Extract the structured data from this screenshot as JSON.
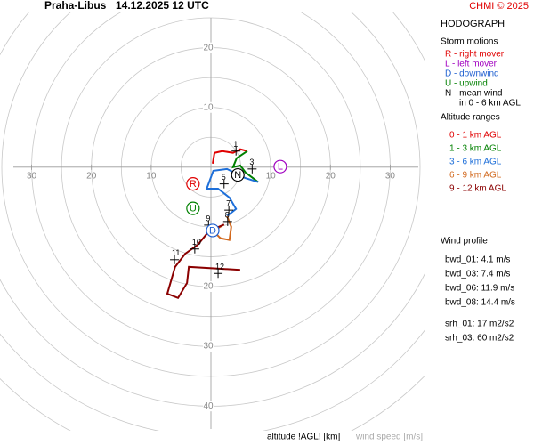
{
  "chart_data": {
    "type": "hodograph",
    "title": "Praha-Libus",
    "subtitle": "14.12.2025 12 UTC",
    "credit": "CHMI © 2025",
    "panel_title": "HODOGRAPH",
    "storm_motions_title": "Storm motions",
    "storm_motions_legend": [
      {
        "text": "R - right mover",
        "color": "#e00000"
      },
      {
        "text": "L - left mover",
        "color": "#a000c0"
      },
      {
        "text": "D - downwind",
        "color": "#1e5fd0"
      },
      {
        "text": "U - upwind",
        "color": "#008000"
      },
      {
        "text": "N - mean wind",
        "color": "#000000"
      },
      {
        "text": "in 0 - 6 km AGL",
        "color": "#000000"
      }
    ],
    "altitude_ranges_title": "Altitude ranges",
    "wind_profile_title": "Wind profile",
    "wind_profile": [
      "bwd_01: 4.1 m/s",
      "bwd_03: 7.4 m/s",
      "bwd_06: 11.9 m/s",
      "bwd_08: 14.4 m/s",
      "srh_01: 17 m2/s2",
      "srh_03: 60 m2/s2"
    ],
    "x_label": "altitude !AGL! [km]",
    "y_label": "wind speed [m/s]",
    "xlim": [
      -35,
      35
    ],
    "ylim": [
      -44,
      28
    ],
    "xticks": [
      {
        "value": -30,
        "label": "30"
      },
      {
        "value": -20,
        "label": "20"
      },
      {
        "value": -10,
        "label": "10"
      },
      10,
      20,
      30
    ],
    "yticks": [
      20,
      10,
      {
        "value": -20,
        "label": "20"
      },
      {
        "value": -30,
        "label": "30"
      },
      {
        "value": -40,
        "label": "40"
      }
    ],
    "rings": [
      5,
      10,
      15,
      20,
      25,
      30,
      35,
      40,
      45,
      50
    ],
    "series": [
      {
        "name": "0 - 1 km AGL",
        "color": "#e00000",
        "x": [
          0.3,
          0.6,
          1.9,
          3.7,
          4.9,
          6.1
        ],
        "y": [
          0.6,
          2.4,
          2.7,
          2.4,
          3.0,
          2.7
        ]
      },
      {
        "name": "1 - 3 km AGL",
        "color": "#008000",
        "x": [
          6.1,
          4.3,
          3.7,
          4.9,
          5.8,
          7.0,
          7.9
        ],
        "y": [
          2.7,
          1.5,
          0,
          0.3,
          -0.9,
          -1.8,
          -2.5
        ]
      },
      {
        "name": "3 - 6 km AGL",
        "color": "#1e6fd9",
        "x": [
          7.9,
          5.7,
          2.7,
          0.4,
          -0.7,
          1.2,
          3.1,
          4.2,
          2.7
        ],
        "y": [
          -2.5,
          -1.8,
          -0.3,
          -0.6,
          -3.6,
          -3.6,
          -5.1,
          -7.0,
          -8.2
        ]
      },
      {
        "name": "6 - 9 km AGL",
        "color": "#d2691e",
        "x": [
          2.7,
          3.4,
          3.1,
          1.6,
          0.4,
          2.2
        ],
        "y": [
          -8.2,
          -10.0,
          -12.2,
          -11.9,
          -10.7,
          -9.6
        ]
      },
      {
        "name": "9 - 12 km AGL",
        "color": "#8b0000",
        "x": [
          2.2,
          -0.3,
          -2.2,
          -4.3,
          -6.0,
          -7.3,
          -5.5,
          -4.0,
          -3.7,
          4.9
        ],
        "y": [
          -9.6,
          -10.7,
          -13.0,
          -14.5,
          -16.7,
          -21.2,
          -21.9,
          -19.4,
          -16.7,
          -17.2
        ]
      }
    ],
    "height_markers": [
      {
        "label": "1",
        "u": 4.2,
        "v": 2.7
      },
      {
        "label": "3",
        "u": 6.9,
        "v": -0.3
      },
      {
        "label": "5",
        "u": 2.2,
        "v": -2.8
      },
      {
        "label": "7",
        "u": 3.0,
        "v": -7.2
      },
      {
        "label": "8",
        "u": 2.8,
        "v": -9.1
      },
      {
        "label": "9",
        "u": -0.4,
        "v": -9.7
      },
      {
        "label": "10",
        "u": -2.7,
        "v": -13.7
      },
      {
        "label": "11",
        "u": -6.1,
        "v": -15.5
      },
      {
        "label": "12",
        "u": 1.2,
        "v": -17.8
      }
    ],
    "storm_motions": [
      {
        "label": "R",
        "u": -3.0,
        "v": -2.8,
        "color": "#e00000"
      },
      {
        "label": "L",
        "u": 11.6,
        "v": 0.1,
        "color": "#a000c0"
      },
      {
        "label": "D",
        "u": 0.3,
        "v": -10.6,
        "color": "#1e5fd0"
      },
      {
        "label": "U",
        "u": -3.0,
        "v": -6.9,
        "color": "#008000"
      },
      {
        "label": "N",
        "u": 4.5,
        "v": -1.3,
        "color": "#000000"
      }
    ]
  }
}
